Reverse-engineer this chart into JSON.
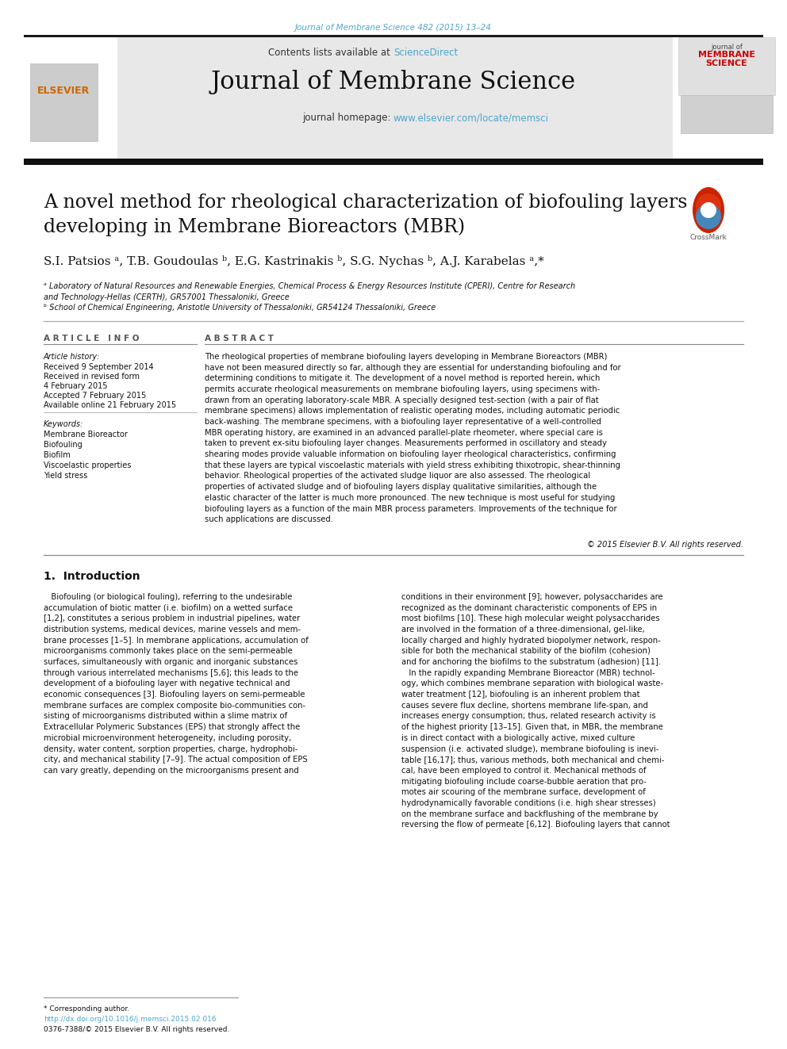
{
  "page_bg": "#ffffff",
  "top_journal_text": "Journal of Membrane Science 482 (2015) 13–24",
  "top_journal_color": "#4da6cc",
  "contents_text": "Contents lists available at ",
  "sciencedirect_text": "ScienceDirect",
  "sciencedirect_color": "#4da6cc",
  "journal_title": "Journal of Membrane Science",
  "journal_homepage_label": "journal homepage: ",
  "journal_homepage_url": "www.elsevier.com/locate/memsci",
  "journal_homepage_color": "#4da6cc",
  "header_bg": "#e8e8e8",
  "paper_title": "A novel method for rheological characterization of biofouling layers\ndeveloping in Membrane Bioreactors (MBR)",
  "authors": "S.I. Patsios ᵃ, T.B. Goudoulas ᵇ, E.G. Kastrinakis ᵇ, S.G. Nychas ᵇ, A.J. Karabelas ᵃ,*",
  "affil_a": "ᵃ Laboratory of Natural Resources and Renewable Energies, Chemical Process & Energy Resources Institute (CPERI), Centre for Research\nand Technology-Hellas (CERTH), GR57001 Thessaloniki, Greece",
  "affil_b": "ᵇ School of Chemical Engineering, Aristotle University of Thessaloniki, GR54124 Thessaloniki, Greece",
  "article_info_header": "A R T I C L E   I N F O",
  "abstract_header": "A B S T R A C T",
  "article_history_label": "Article history:",
  "received_1": "Received 9 September 2014",
  "received_2": "Received in revised form",
  "date_revised": "4 February 2015",
  "accepted": "Accepted 7 February 2015",
  "available": "Available online 21 February 2015",
  "keywords_label": "Keywords:",
  "keywords": [
    "Membrane Bioreactor",
    "Biofouling",
    "Biofilm",
    "Viscoelastic properties",
    "Yield stress"
  ],
  "abstract_text": "The rheological properties of membrane biofouling layers developing in Membrane Bioreactors (MBR)\nhave not been measured directly so far, although they are essential for understanding biofouling and for\ndetermining conditions to mitigate it. The development of a novel method is reported herein, which\npermits accurate rheological measurements on membrane biofouling layers, using specimens with-\ndrawn from an operating laboratory-scale MBR. A specially designed test-section (with a pair of flat\nmembrane specimens) allows implementation of realistic operating modes, including automatic periodic\nback-washing. The membrane specimens, with a biofouling layer representative of a well-controlled\nMBR operating history, are examined in an advanced parallel-plate rheometer, where special care is\ntaken to prevent ex-situ biofouling layer changes. Measurements performed in oscillatory and steady\nshearing modes provide valuable information on biofouling layer rheological characteristics, confirming\nthat these layers are typical viscoelastic materials with yield stress exhibiting thixotropic, shear-thinning\nbehavior. Rheological properties of the activated sludge liquor are also assessed. The rheological\nproperties of activated sludge and of biofouling layers display qualitative similarities, although the\nelastic character of the latter is much more pronounced. The new technique is most useful for studying\nbiofouling layers as a function of the main MBR process parameters. Improvements of the technique for\nsuch applications are discussed.",
  "copyright": "© 2015 Elsevier B.V. All rights reserved.",
  "intro_header": "1.  Introduction",
  "intro_text_left": "   Biofouling (or biological fouling), referring to the undesirable\naccumulation of biotic matter (i.e. biofilm) on a wetted surface\n[1,2], constitutes a serious problem in industrial pipelines, water\ndistribution systems, medical devices, marine vessels and mem-\nbrane processes [1–5]. In membrane applications, accumulation of\nmicroorganisms commonly takes place on the semi-permeable\nsurfaces, simultaneously with organic and inorganic substances\nthrough various interrelated mechanisms [5,6]; this leads to the\ndevelopment of a biofouling layer with negative technical and\neconomic consequences [3]. Biofouling layers on semi-permeable\nmembrane surfaces are complex composite bio-communities con-\nsisting of microorganisms distributed within a slime matrix of\nExtracellular Polymeric Substances (EPS) that strongly affect the\nmicrobial microenvironment heterogeneity, including porosity,\ndensity, water content, sorption properties, charge, hydrophobi-\ncity, and mechanical stability [7–9]. The actual composition of EPS\ncan vary greatly, depending on the microorganisms present and",
  "intro_text_right": "conditions in their environment [9]; however, polysaccharides are\nrecognized as the dominant characteristic components of EPS in\nmost biofilms [10]. These high molecular weight polysaccharides\nare involved in the formation of a three-dimensional, gel-like,\nlocally charged and highly hydrated biopolymer network, respon-\nsible for both the mechanical stability of the biofilm (cohesion)\nand for anchoring the biofilms to the substratum (adhesion) [11].\n   In the rapidly expanding Membrane Bioreactor (MBR) technol-\nogy, which combines membrane separation with biological waste-\nwater treatment [12], biofouling is an inherent problem that\ncauses severe flux decline, shortens membrane life-span, and\nincreases energy consumption; thus, related research activity is\nof the highest priority [13–15]. Given that, in MBR, the membrane\nis in direct contact with a biologically active, mixed culture\nsuspension (i.e. activated sludge), membrane biofouling is inevi-\ntable [16,17]; thus, various methods, both mechanical and chemi-\ncal, have been employed to control it. Mechanical methods of\nmitigating biofouling include coarse-bubble aeration that pro-\nmotes air scouring of the membrane surface, development of\nhydrodynamically favorable conditions (i.e. high shear stresses)\non the membrane surface and backflushing of the membrane by\nreversing the flow of permeate [6,12]. Biofouling layers that cannot",
  "footer_line1": "* Corresponding author.",
  "footer_line2": "http://dx.doi.org/10.1016/j.memsci.2015.02.016",
  "footer_line2_color": "#4da6cc",
  "footer_line3": "0376-7388/© 2015 Elsevier B.V. All rights reserved.",
  "link_color": "#4da6cc",
  "text_color": "#000000",
  "section_line_color": "#888888"
}
